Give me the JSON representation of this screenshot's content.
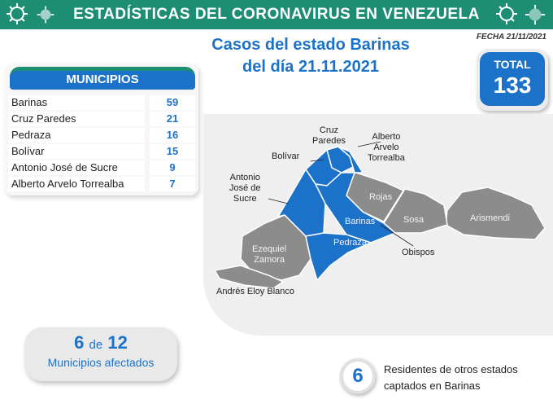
{
  "banner": {
    "title": "ESTADÍSTICAS DEL CORONAVIRUS EN VENEZUELA"
  },
  "headline": {
    "line1": "Casos del estado Barinas",
    "line2": "del día 21.11.2021"
  },
  "fecha": "FECHA 21/11/2021",
  "total": {
    "label": "TOTAL",
    "value": "133"
  },
  "municipios": {
    "header": "MUNICIPIOS",
    "rows": [
      {
        "name": "Barinas",
        "value": "59"
      },
      {
        "name": "Cruz Paredes",
        "value": "21"
      },
      {
        "name": "Pedraza",
        "value": "16"
      },
      {
        "name": "Bolívar",
        "value": "15"
      },
      {
        "name": "Antonio José de Sucre",
        "value": "9"
      },
      {
        "name": "Alberto Arvelo Torrealba",
        "value": "7"
      }
    ]
  },
  "map": {
    "labels": {
      "cruz_paredes": "Cruz\nParedes",
      "alberto": "Alberto\nArvelo\nTorrealba",
      "bolivar": "Bolívar",
      "antonio": "Antonio\nJosé de\nSucre",
      "rojas": "Rojas",
      "barinas": "Barinas",
      "sosa": "Sosa",
      "arismendi": "Arismendi",
      "ezequiel": "Ezequiel\nZamora",
      "pedraza": "Pedraza",
      "obispos": "Obispos",
      "andres": "Andrés Eloy Blanco"
    },
    "colors": {
      "affected": "#1c72c9",
      "unaffected": "#8c8c8c"
    }
  },
  "afectados": {
    "count": "6",
    "de": "de",
    "total": "12",
    "label": "Municipios afectados"
  },
  "residentes": {
    "value": "6",
    "line1": "Residentes de otros estados",
    "line2": "captados en Barinas"
  }
}
